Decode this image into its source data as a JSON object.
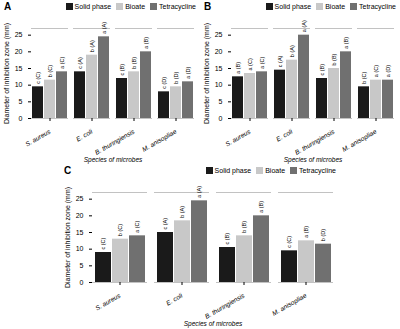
{
  "chart_data": [
    {
      "type": "bar",
      "title": "A",
      "xlabel": "Species of microbes",
      "ylabel": "Diameter of inhibition zone (mm)",
      "categories": [
        "S. aureus",
        "E. coli",
        "B. thuringiensis",
        "M. anisopliae"
      ],
      "series": [
        {
          "name": "Solid phase",
          "color": "#1a1a1a",
          "values": [
            9.5,
            14.0,
            12.0,
            8.0
          ],
          "annotations": [
            "c (C)",
            "c (A)",
            "c (B)",
            "c (D)"
          ]
        },
        {
          "name": "Bioate",
          "color": "#c8c8c8",
          "values": [
            11.5,
            19.0,
            14.0,
            9.5
          ],
          "annotations": [
            "b (C)",
            "b (A)",
            "b (B)",
            "b (D)"
          ]
        },
        {
          "name": "Tetracycline",
          "color": "#707070",
          "values": [
            14.0,
            24.5,
            20.0,
            11.0
          ],
          "annotations": [
            "a (C)",
            "a (A)",
            "a (B)",
            "a (D)"
          ]
        }
      ],
      "ylim": [
        0,
        27
      ],
      "yticks": [
        0,
        5,
        10,
        15,
        20,
        25
      ],
      "legend": "upper right",
      "grid": false
    },
    {
      "type": "bar",
      "title": "B",
      "xlabel": "Species of microbes",
      "ylabel": "Diameter of inhibition zone (mm)",
      "categories": [
        "S. aureus",
        "E. coli",
        "B. thuringiensis",
        "M. anisopliae"
      ],
      "series": [
        {
          "name": "Solid phase",
          "color": "#1a1a1a",
          "values": [
            12.5,
            14.5,
            12.0,
            9.5
          ],
          "annotations": [
            "a (B)",
            "c (A)",
            "c (B)",
            "b (C)"
          ]
        },
        {
          "name": "Bioate",
          "color": "#c8c8c8",
          "values": [
            13.5,
            17.5,
            15.0,
            11.5
          ],
          "annotations": [
            "a (C)",
            "b (A)",
            "b (B)",
            "a (C)"
          ]
        },
        {
          "name": "Tetracycline",
          "color": "#707070",
          "values": [
            14.0,
            25.0,
            20.0,
            11.5
          ],
          "annotations": [
            "a (C)",
            "a (A)",
            "a (B)",
            "a (D)"
          ]
        }
      ],
      "ylim": [
        0,
        27
      ],
      "yticks": [
        0,
        5,
        10,
        15,
        20,
        25
      ],
      "legend": "upper right",
      "grid": false
    },
    {
      "type": "bar",
      "title": "C",
      "xlabel": "Species of microbes",
      "ylabel": "Diameter of inhibition zone (mm)",
      "categories": [
        "S. aureus",
        "E. coli",
        "B. thuringiensis",
        "M. anisopliae"
      ],
      "series": [
        {
          "name": "Solid phase",
          "color": "#1a1a1a",
          "values": [
            9.0,
            15.0,
            10.5,
            9.5
          ],
          "annotations": [
            "c (C)",
            "c (A)",
            "c (B)",
            "c (C)"
          ]
        },
        {
          "name": "Bioate",
          "color": "#c8c8c8",
          "values": [
            13.0,
            18.5,
            14.0,
            12.5
          ],
          "annotations": [
            "b (C)",
            "b (A)",
            "b (B)",
            "a (B)"
          ]
        },
        {
          "name": "Tetracycline",
          "color": "#707070",
          "values": [
            14.0,
            24.5,
            20.0,
            11.5
          ],
          "annotations": [
            "a (C)",
            "a (A)",
            "a (B)",
            "b (D)"
          ]
        }
      ],
      "ylim": [
        0,
        27
      ],
      "yticks": [
        0,
        5,
        10,
        15,
        20,
        25
      ],
      "legend": "upper right",
      "grid": false
    }
  ]
}
